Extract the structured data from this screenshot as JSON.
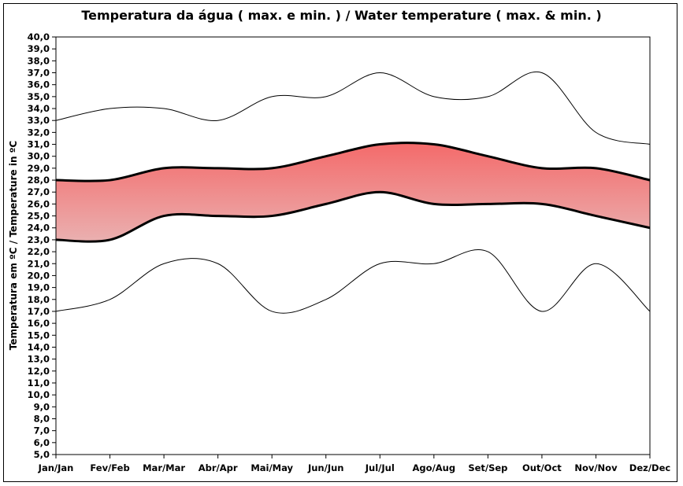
{
  "chart_data": {
    "type": "area",
    "title": "Temperatura da água ( max. e min. ) / Water temperature ( max. & min. )",
    "xlabel": "",
    "ylabel": "Temperatura em ºC / Temperature in ºC",
    "ylim": [
      5,
      40
    ],
    "ystep": 1,
    "grid": false,
    "categories": [
      "Jan/Jan",
      "Fev/Feb",
      "Mar/Mar",
      "Abr/Apr",
      "Mai/May",
      "Jun/Jun",
      "Jul/Jul",
      "Ago/Aug",
      "Set/Sep",
      "Out/Oct",
      "Nov/Nov",
      "Dez/Dec"
    ],
    "series": [
      {
        "values": [
          33,
          34,
          34,
          33,
          35,
          35,
          37,
          35,
          35,
          37,
          32,
          31
        ],
        "style": "thin-line"
      },
      {
        "values": [
          28,
          28,
          29,
          29,
          29,
          30,
          31,
          31,
          30,
          29,
          29,
          28
        ],
        "style": "thick-line-band-top"
      },
      {
        "values": [
          23,
          23,
          25,
          25,
          25,
          26,
          27,
          26,
          26,
          26,
          25,
          24
        ],
        "style": "thick-line-band-bottom"
      },
      {
        "values": [
          17,
          18,
          21,
          21,
          17,
          18,
          21,
          21,
          22,
          17,
          21,
          17
        ],
        "style": "thin-line"
      }
    ],
    "band_colors": {
      "top": "#f46a6a",
      "bottom": "#eab0b0"
    }
  }
}
